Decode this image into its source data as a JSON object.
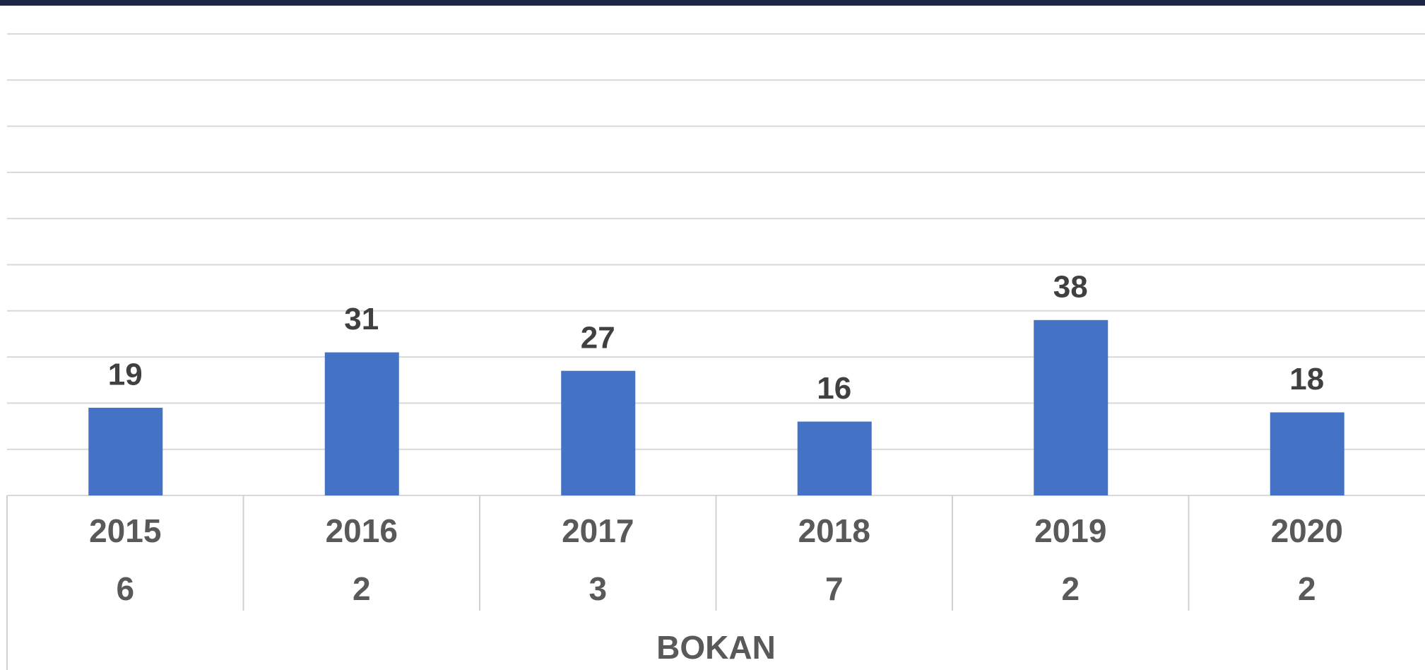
{
  "chart_data": {
    "type": "bar",
    "categories": [
      "2015",
      "2016",
      "2017",
      "2018",
      "2019",
      "2020"
    ],
    "subcategories": [
      "6",
      "2",
      "3",
      "7",
      "2",
      "2"
    ],
    "group_label": "BOKAN",
    "values": [
      19,
      31,
      27,
      16,
      38,
      18
    ],
    "color": "#4472c4",
    "ylim": [
      0,
      100
    ],
    "yticks": [
      0,
      10,
      20,
      30,
      40,
      50,
      60,
      70,
      80,
      90,
      100
    ],
    "grid": true
  }
}
